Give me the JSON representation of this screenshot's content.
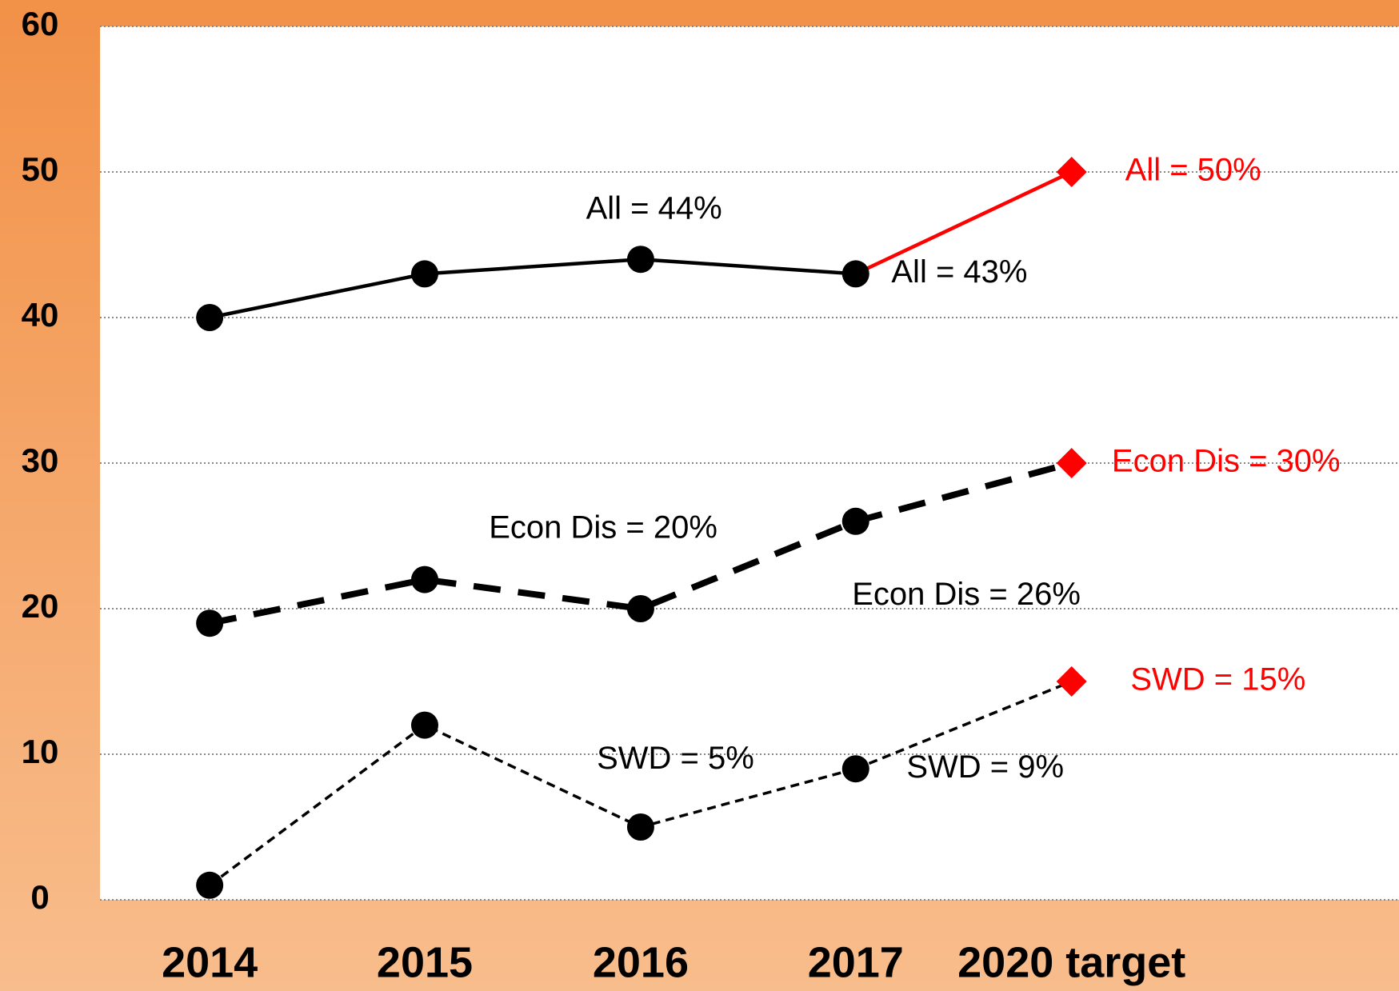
{
  "chart_data": {
    "type": "line",
    "categories": [
      "2014",
      "2015",
      "2016",
      "2017",
      "2020 target"
    ],
    "ylim": [
      0,
      60
    ],
    "yticks": [
      0,
      10,
      20,
      30,
      40,
      50,
      60
    ],
    "grid": true,
    "target_color": "#ff0000",
    "series": [
      {
        "color": "#000000",
        "dash": "solid",
        "target_line_color": "#ff0000",
        "values": [
          40,
          43,
          44,
          43,
          50
        ],
        "value_labels": [
          null,
          null,
          "All = 44%",
          "All = 43%",
          "All = 50%"
        ]
      },
      {
        "color": "#000000",
        "dash": "long",
        "target_line_color": "#000000",
        "values": [
          19,
          22,
          20,
          26,
          30
        ],
        "value_labels": [
          null,
          null,
          "Econ Dis = 20%",
          "Econ Dis = 26%",
          "Econ Dis = 30%"
        ]
      },
      {
        "color": "#000000",
        "dash": "short",
        "target_line_color": "#000000",
        "values": [
          1,
          12,
          5,
          9,
          15
        ],
        "value_labels": [
          null,
          null,
          "SWD = 5%",
          "SWD = 9%",
          "SWD = 15%"
        ]
      }
    ]
  }
}
